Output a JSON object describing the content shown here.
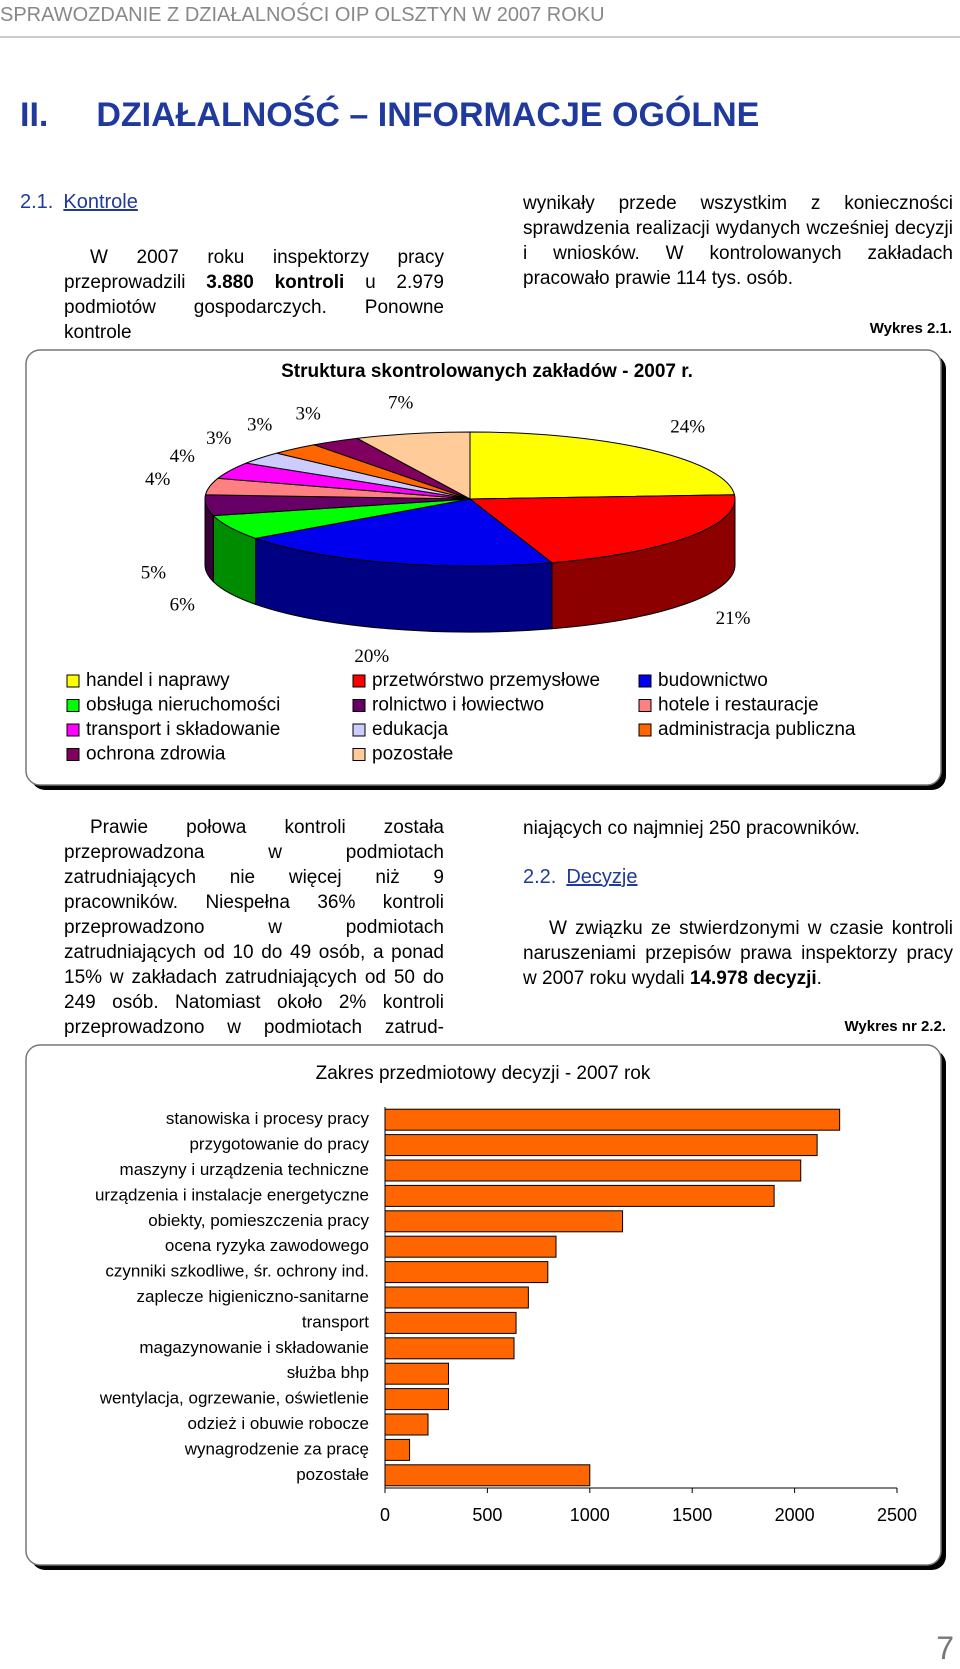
{
  "header": {
    "running_title": "SPRAWOZDANIE Z DZIAŁALNOŚCI OIP OLSZTYN W 2007 ROKU",
    "chapter_number": "II.",
    "chapter_title": "DZIAŁALNOŚĆ – INFORMACJE OGÓLNE"
  },
  "section_1": {
    "number": "2.1.",
    "title": "Kontrole",
    "paragraph_1": [
      "W 2007 roku inspektorzy pracy przeprowadzili ",
      "3.880 kontroli",
      " u 2.979 podmiotów gospodarczych. Ponowne kontrole"
    ],
    "paragraph_1_continued": "wynikały przede wszystkim z konieczności sprawdzenia realizacji wydanych wcześniej decyzji i wniosków. W kontrolowanych zakładach pracowało prawie 114 tys. osób.",
    "figure_label": "Wykres 2.1.",
    "paragraph_2": "Prawie połowa kontroli została przeprowadzona w podmiotach zatrudniających nie więcej niż 9 pracowników. Niespełna 36% kontroli przeprowadzono w podmiotach zatrudniających od 10 do 49 osób, a ponad 15% w zakładach zatrudniających od 50 do 249 osób. Natomiast około 2% kontroli przeprowadzono w podmiotach zatrud-",
    "paragraph_2_continued": "niających co najmniej 250 pracowników."
  },
  "section_2": {
    "number": "2.2.",
    "title": "Decyzje",
    "paragraph_1": [
      "W związku ze stwierdzonymi w czasie kontroli naruszeniami przepisów prawa inspektorzy pracy w 2007 roku wydali ",
      "14.978 decyzji",
      "."
    ],
    "figure_label": "Wykres nr 2.2."
  },
  "page_number": "7",
  "chart_data": [
    {
      "type": "pie",
      "title": "Struktura skontrolowanych zakładów - 2007 r.",
      "categories": [
        "handel i naprawy",
        "przetwórstwo przemysłowe",
        "budownictwo",
        "obsługa nieruchomości",
        "rolnictwo i łowiectwo",
        "hotele i restauracje",
        "transport i składowanie",
        "edukacja",
        "administracja publiczna",
        "ochrona zdrowia",
        "pozostałe"
      ],
      "values": [
        24,
        21,
        20,
        6,
        5,
        4,
        4,
        3,
        3,
        3,
        7
      ],
      "value_labels": [
        "24%",
        "21%",
        "20%",
        "6%",
        "5%",
        "4%",
        "4%",
        "3%",
        "3%",
        "3%",
        "7%"
      ],
      "colors": [
        "#ffff00",
        "#ff0000",
        "#0000ee",
        "#00ff00",
        "#660066",
        "#ff8080",
        "#ff00ff",
        "#ccccff",
        "#ff6600",
        "#800060",
        "#ffcc99"
      ]
    },
    {
      "type": "bar",
      "orientation": "horizontal",
      "title": "Zakres przedmiotowy decyzji - 2007 rok",
      "categories": [
        "stanowiska i procesy pracy",
        "przygotowanie do pracy",
        "maszyny i urządzenia techniczne",
        "urządzenia i instalacje energetyczne",
        "obiekty, pomieszczenia pracy",
        "ocena ryzyka zawodowego",
        "czynniki szkodliwe, śr. ochrony ind.",
        "zaplecze higieniczno-sanitarne",
        "transport",
        "magazynowanie i składowanie",
        "służba bhp",
        "wentylacja, ogrzewanie, oświetlenie",
        "odzież i obuwie robocze",
        "wynagrodzenie za pracę",
        "pozostałe"
      ],
      "values": [
        2220,
        2110,
        2030,
        1900,
        1160,
        835,
        795,
        700,
        640,
        630,
        310,
        310,
        210,
        120,
        1000
      ],
      "color": "#ff6600",
      "xlim": [
        0,
        2500
      ],
      "xticks": [
        0,
        500,
        1000,
        1500,
        2000,
        2500
      ]
    }
  ]
}
